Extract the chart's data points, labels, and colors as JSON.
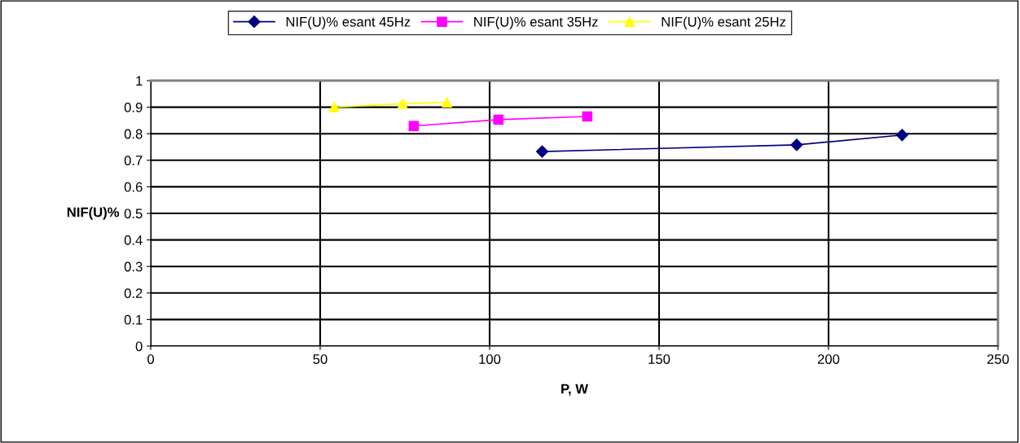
{
  "chart_data": {
    "type": "line",
    "xlabel": "P, W",
    "ylabel": "NIF(U)%",
    "xlim": [
      0,
      250
    ],
    "xticks": [
      0,
      50,
      100,
      150,
      200,
      250
    ],
    "ylim": [
      0,
      1
    ],
    "yticks": [
      0,
      0.1,
      0.2,
      0.3,
      0.4,
      0.5,
      0.6,
      0.7,
      0.8,
      0.9,
      1
    ],
    "grid": true,
    "legend": "top",
    "line_style": "solid",
    "series": [
      {
        "name": "NIF(U)% esant 45Hz",
        "color": "#000080",
        "marker": "diamond",
        "x": [
          115.5,
          190.6,
          221.7
        ],
        "values": [
          0.733,
          0.758,
          0.795
        ]
      },
      {
        "name": "NIF(U)% esant 35Hz",
        "color": "#ff00ff",
        "marker": "square",
        "x": [
          77.6,
          102.6,
          128.8
        ],
        "values": [
          0.829,
          0.853,
          0.865
        ]
      },
      {
        "name": "NIF(U)% esant 25Hz",
        "color": "#ffff00",
        "marker": "triangle",
        "x": [
          54.1,
          74.3,
          87.4
        ],
        "values": [
          0.9,
          0.913,
          0.918
        ]
      }
    ]
  }
}
